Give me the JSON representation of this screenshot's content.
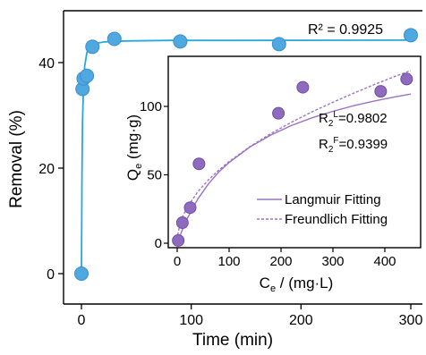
{
  "chart_data": [
    {
      "type": "scatter",
      "xlabel": "Time (min)",
      "ylabel": "Removal (%)",
      "xlim": [
        -5,
        305
      ],
      "ylim": [
        -3,
        48
      ],
      "xticks": [
        0,
        100,
        200,
        300
      ],
      "yticks": [
        0,
        20,
        40
      ],
      "grid": false,
      "annotations": [
        {
          "text": "R² = 0.9925"
        }
      ],
      "series": [
        {
          "color": "#4FA8E0",
          "fit_color": "#29A8E0",
          "x": [
            0,
            1,
            2,
            5,
            10,
            30,
            90,
            180,
            300
          ],
          "y": [
            0,
            35,
            37,
            37.5,
            43,
            44.5,
            44,
            43.5,
            45.2
          ],
          "fit_x": [
            0,
            0.5,
            1,
            2,
            3,
            5,
            8,
            12,
            20,
            40,
            80,
            150,
            300
          ],
          "fit_y": [
            0,
            18.6,
            28.9,
            36.4,
            39.4,
            41.9,
            43.1,
            43.6,
            43.9,
            44.1,
            44.2,
            44.2,
            44.25
          ]
        }
      ]
    },
    {
      "type": "scatter",
      "xlabel_main": "C",
      "xlabel_sub": "e",
      "xlabel_rest": " / (mg·L)",
      "ylabel_main": "Q",
      "ylabel_sub": "e",
      "ylabel_rest": " (mg·g)",
      "xlim": [
        -20,
        460
      ],
      "ylim": [
        -5,
        132
      ],
      "xticks": [
        0,
        100,
        200,
        300,
        400
      ],
      "yticks": [
        0,
        50,
        100
      ],
      "grid": false,
      "legend_position": "bottom-right",
      "annotations": [
        {
          "main": "R",
          "sub": "2",
          "sup": "L",
          "rest": "=0.9802"
        },
        {
          "main": "R",
          "sub": "2",
          "sup": "F",
          "rest": "=0.9399"
        }
      ],
      "points": {
        "color": "#8E6BBF",
        "x": [
          2,
          10,
          25,
          42,
          195,
          242,
          392,
          442
        ],
        "y": [
          2,
          15,
          26,
          58,
          95,
          114,
          111,
          120
        ]
      },
      "series": [
        {
          "name": "Langmuir Fitting",
          "style": "solid",
          "color": "#9B72C6",
          "fit_x": [
            0,
            5,
            10,
            20,
            40,
            60,
            80,
            100,
            140,
            180,
            220,
            260,
            300,
            340,
            380,
            420,
            450
          ],
          "fit_y": [
            0,
            5,
            10,
            18.6,
            32.5,
            43.3,
            52,
            59,
            70.3,
            79,
            86,
            91.7,
            96.4,
            100.5,
            104,
            107,
            109
          ]
        },
        {
          "name": "Freundlich Fitting",
          "style": "dashed",
          "color": "#9B72C6",
          "fit_x": [
            1,
            5,
            10,
            20,
            40,
            60,
            80,
            100,
            140,
            180,
            220,
            260,
            300,
            340,
            380,
            420,
            450
          ],
          "fit_y": [
            6,
            13.5,
            19,
            26.8,
            37.8,
            46.3,
            53.4,
            59.7,
            70.6,
            80,
            88.4,
            96.1,
            103,
            109.7,
            116,
            122,
            126.2
          ]
        }
      ]
    }
  ]
}
